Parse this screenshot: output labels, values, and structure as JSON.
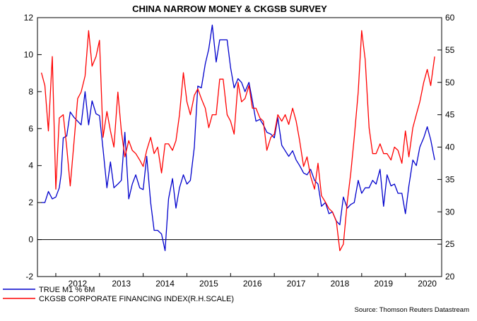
{
  "chart_data": {
    "type": "line",
    "title": "CHINA NARROW MONEY & CKGSB SURVEY",
    "source": "Source: Thomson Reuters Datastream",
    "x_tick_labels": [
      "2012",
      "2013",
      "2014",
      "2015",
      "2016",
      "2017",
      "2018",
      "2019",
      "2020"
    ],
    "x_range": [
      2011.58,
      2020.83
    ],
    "y_left": {
      "range": [
        -2,
        12
      ],
      "ticks": [
        -2,
        0,
        2,
        4,
        6,
        8,
        10,
        12
      ]
    },
    "y_right": {
      "range": [
        20,
        60
      ],
      "ticks": [
        20,
        25,
        30,
        35,
        40,
        45,
        50,
        55,
        60
      ]
    },
    "zero_line": 0,
    "legend_position": "bottom-left",
    "series": [
      {
        "name": "TRUE M1 % 6M",
        "color": "#0000cc",
        "axis": "left",
        "points": [
          [
            2011.67,
            2.0
          ],
          [
            2011.75,
            2.0
          ],
          [
            2011.83,
            2.6
          ],
          [
            2011.92,
            2.2
          ],
          [
            2012.0,
            2.3
          ],
          [
            2012.08,
            2.8
          ],
          [
            2012.12,
            3.5
          ],
          [
            2012.17,
            5.5
          ],
          [
            2012.25,
            5.6
          ],
          [
            2012.33,
            6.9
          ],
          [
            2012.42,
            6.6
          ],
          [
            2012.5,
            6.4
          ],
          [
            2012.58,
            6.2
          ],
          [
            2012.67,
            8.0
          ],
          [
            2012.75,
            6.2
          ],
          [
            2012.83,
            7.5
          ],
          [
            2012.92,
            6.8
          ],
          [
            2013.0,
            6.7
          ],
          [
            2013.08,
            4.9
          ],
          [
            2013.17,
            2.8
          ],
          [
            2013.25,
            4.2
          ],
          [
            2013.33,
            2.8
          ],
          [
            2013.42,
            3.0
          ],
          [
            2013.5,
            3.2
          ],
          [
            2013.58,
            5.8
          ],
          [
            2013.67,
            2.2
          ],
          [
            2013.75,
            3.0
          ],
          [
            2013.83,
            3.5
          ],
          [
            2013.92,
            2.8
          ],
          [
            2014.0,
            2.7
          ],
          [
            2014.08,
            4.5
          ],
          [
            2014.17,
            2.0
          ],
          [
            2014.25,
            0.5
          ],
          [
            2014.33,
            0.5
          ],
          [
            2014.42,
            0.3
          ],
          [
            2014.5,
            -0.6
          ],
          [
            2014.58,
            2.2
          ],
          [
            2014.67,
            3.3
          ],
          [
            2014.75,
            1.7
          ],
          [
            2014.83,
            2.8
          ],
          [
            2014.92,
            3.5
          ],
          [
            2015.0,
            3.0
          ],
          [
            2015.08,
            3.2
          ],
          [
            2015.17,
            5.0
          ],
          [
            2015.25,
            8.3
          ],
          [
            2015.33,
            8.2
          ],
          [
            2015.42,
            9.5
          ],
          [
            2015.5,
            10.3
          ],
          [
            2015.58,
            11.6
          ],
          [
            2015.67,
            9.6
          ],
          [
            2015.75,
            10.8
          ],
          [
            2015.83,
            10.8
          ],
          [
            2015.92,
            10.8
          ],
          [
            2016.0,
            9.3
          ],
          [
            2016.08,
            8.2
          ],
          [
            2016.17,
            8.7
          ],
          [
            2016.25,
            8.5
          ],
          [
            2016.33,
            8.0
          ],
          [
            2016.42,
            8.5
          ],
          [
            2016.5,
            7.5
          ],
          [
            2016.58,
            6.4
          ],
          [
            2016.67,
            6.5
          ],
          [
            2016.75,
            6.2
          ],
          [
            2016.83,
            5.8
          ],
          [
            2016.92,
            5.7
          ],
          [
            2017.0,
            5.5
          ],
          [
            2017.08,
            6.6
          ],
          [
            2017.17,
            5.1
          ],
          [
            2017.25,
            4.8
          ],
          [
            2017.33,
            4.5
          ],
          [
            2017.42,
            4.8
          ],
          [
            2017.5,
            4.3
          ],
          [
            2017.58,
            4.0
          ],
          [
            2017.67,
            3.6
          ],
          [
            2017.75,
            3.5
          ],
          [
            2017.83,
            3.8
          ],
          [
            2017.92,
            3.2
          ],
          [
            2018.0,
            3.0
          ],
          [
            2018.08,
            1.8
          ],
          [
            2018.17,
            2.0
          ],
          [
            2018.25,
            1.4
          ],
          [
            2018.33,
            1.5
          ],
          [
            2018.42,
            1.0
          ],
          [
            2018.5,
            0.8
          ],
          [
            2018.58,
            2.3
          ],
          [
            2018.67,
            1.7
          ],
          [
            2018.75,
            1.9
          ],
          [
            2018.83,
            2.0
          ],
          [
            2018.92,
            3.2
          ],
          [
            2019.0,
            2.5
          ],
          [
            2019.08,
            2.8
          ],
          [
            2019.17,
            2.8
          ],
          [
            2019.25,
            3.2
          ],
          [
            2019.33,
            3.0
          ],
          [
            2019.42,
            3.8
          ],
          [
            2019.5,
            1.8
          ],
          [
            2019.58,
            3.5
          ],
          [
            2019.67,
            2.9
          ],
          [
            2019.75,
            3.0
          ],
          [
            2019.83,
            2.5
          ],
          [
            2019.92,
            2.5
          ],
          [
            2020.0,
            1.4
          ],
          [
            2020.08,
            2.9
          ],
          [
            2020.17,
            4.3
          ],
          [
            2020.25,
            4.0
          ],
          [
            2020.33,
            5.0
          ],
          [
            2020.42,
            5.5
          ],
          [
            2020.5,
            6.1
          ],
          [
            2020.58,
            5.4
          ],
          [
            2020.67,
            4.3
          ]
        ]
      },
      {
        "name": "CKGSB CORPORATE FINANCING INDEX(R.H.SCALE)",
        "color": "#ff0000",
        "axis": "right",
        "points": [
          [
            2011.67,
            51.5
          ],
          [
            2011.75,
            49.5
          ],
          [
            2011.83,
            42.5
          ],
          [
            2011.92,
            54.0
          ],
          [
            2012.0,
            33.5
          ],
          [
            2012.08,
            44.5
          ],
          [
            2012.17,
            45.0
          ],
          [
            2012.25,
            40.0
          ],
          [
            2012.33,
            34.0
          ],
          [
            2012.42,
            41.0
          ],
          [
            2012.5,
            47.5
          ],
          [
            2012.58,
            48.5
          ],
          [
            2012.67,
            51.0
          ],
          [
            2012.75,
            58.0
          ],
          [
            2012.83,
            52.5
          ],
          [
            2012.92,
            54.0
          ],
          [
            2013.0,
            56.5
          ],
          [
            2013.08,
            41.5
          ],
          [
            2013.17,
            45.5
          ],
          [
            2013.25,
            42.5
          ],
          [
            2013.33,
            40.0
          ],
          [
            2013.42,
            48.5
          ],
          [
            2013.5,
            42.5
          ],
          [
            2013.58,
            38.5
          ],
          [
            2013.67,
            41.0
          ],
          [
            2013.75,
            39.5
          ],
          [
            2013.83,
            39.0
          ],
          [
            2013.92,
            38.0
          ],
          [
            2014.0,
            37.0
          ],
          [
            2014.08,
            39.5
          ],
          [
            2014.17,
            41.5
          ],
          [
            2014.25,
            39.0
          ],
          [
            2014.33,
            40.0
          ],
          [
            2014.42,
            36.0
          ],
          [
            2014.5,
            40.5
          ],
          [
            2014.58,
            40.5
          ],
          [
            2014.67,
            39.5
          ],
          [
            2014.75,
            41.0
          ],
          [
            2014.83,
            45.0
          ],
          [
            2014.92,
            51.5
          ],
          [
            2015.0,
            47.0
          ],
          [
            2015.08,
            45.0
          ],
          [
            2015.17,
            48.0
          ],
          [
            2015.25,
            49.0
          ],
          [
            2015.33,
            47.5
          ],
          [
            2015.42,
            46.0
          ],
          [
            2015.5,
            43.0
          ],
          [
            2015.58,
            45.0
          ],
          [
            2015.67,
            45.0
          ],
          [
            2015.75,
            50.5
          ],
          [
            2015.83,
            50.5
          ],
          [
            2015.92,
            45.0
          ],
          [
            2016.0,
            44.0
          ],
          [
            2016.08,
            42.0
          ],
          [
            2016.17,
            50.0
          ],
          [
            2016.25,
            47.0
          ],
          [
            2016.33,
            47.5
          ],
          [
            2016.42,
            49.5
          ],
          [
            2016.5,
            46.0
          ],
          [
            2016.58,
            46.0
          ],
          [
            2016.67,
            44.5
          ],
          [
            2016.75,
            44.0
          ],
          [
            2016.83,
            39.5
          ],
          [
            2016.92,
            41.5
          ],
          [
            2017.0,
            42.0
          ],
          [
            2017.08,
            45.0
          ],
          [
            2017.17,
            44.0
          ],
          [
            2017.25,
            45.0
          ],
          [
            2017.33,
            43.5
          ],
          [
            2017.42,
            46.0
          ],
          [
            2017.5,
            44.0
          ],
          [
            2017.58,
            41.0
          ],
          [
            2017.67,
            37.0
          ],
          [
            2017.75,
            38.5
          ],
          [
            2017.83,
            35.5
          ],
          [
            2017.92,
            33.5
          ],
          [
            2018.0,
            37.5
          ],
          [
            2018.08,
            32.5
          ],
          [
            2018.17,
            31.5
          ],
          [
            2018.25,
            30.5
          ],
          [
            2018.33,
            30.0
          ],
          [
            2018.42,
            28.5
          ],
          [
            2018.5,
            24.0
          ],
          [
            2018.58,
            25.0
          ],
          [
            2018.67,
            31.5
          ],
          [
            2018.75,
            36.0
          ],
          [
            2018.83,
            41.5
          ],
          [
            2018.92,
            48.5
          ],
          [
            2019.0,
            58.0
          ],
          [
            2019.08,
            53.5
          ],
          [
            2019.17,
            43.0
          ],
          [
            2019.25,
            39.0
          ],
          [
            2019.33,
            39.0
          ],
          [
            2019.42,
            40.5
          ],
          [
            2019.5,
            39.0
          ],
          [
            2019.58,
            39.0
          ],
          [
            2019.67,
            38.0
          ],
          [
            2019.75,
            40.0
          ],
          [
            2019.83,
            39.5
          ],
          [
            2019.92,
            37.5
          ],
          [
            2020.0,
            42.5
          ],
          [
            2020.08,
            38.5
          ],
          [
            2020.17,
            43.0
          ],
          [
            2020.25,
            45.0
          ],
          [
            2020.33,
            47.0
          ],
          [
            2020.42,
            50.0
          ],
          [
            2020.5,
            52.0
          ],
          [
            2020.58,
            49.5
          ],
          [
            2020.67,
            54.0
          ]
        ]
      }
    ]
  }
}
